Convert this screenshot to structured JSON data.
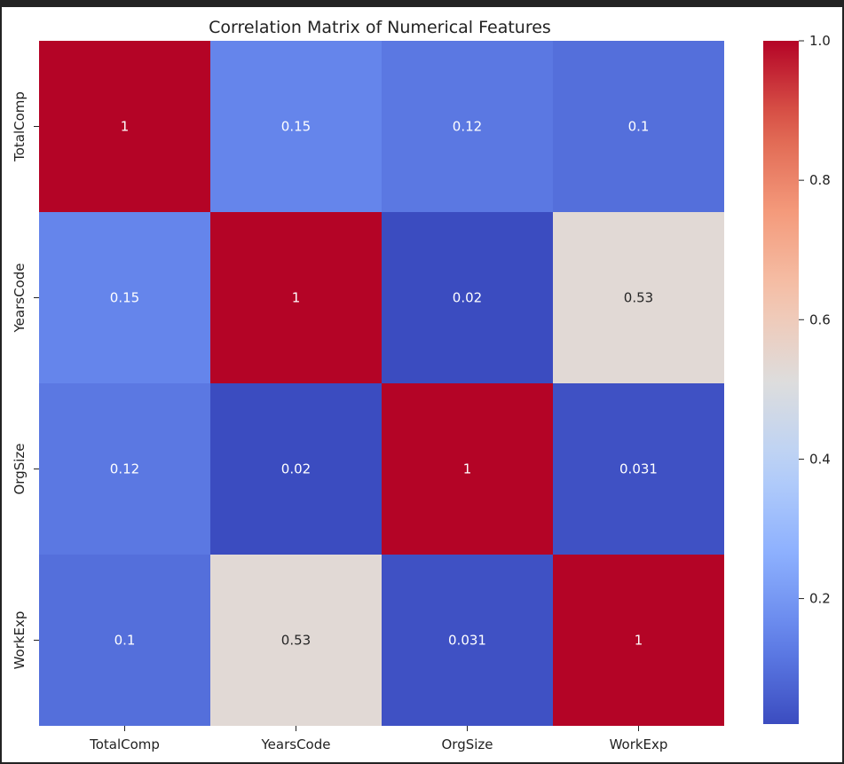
{
  "chart_data": {
    "type": "heatmap",
    "title": "Correlation Matrix of Numerical Features",
    "xlabel": "",
    "ylabel": "",
    "x_categories": [
      "TotalComp",
      "YearsCode",
      "OrgSize",
      "WorkExp"
    ],
    "y_categories": [
      "TotalComp",
      "YearsCode",
      "OrgSize",
      "WorkExp"
    ],
    "values": [
      [
        1,
        0.15,
        0.12,
        0.1
      ],
      [
        0.15,
        1,
        0.02,
        0.53
      ],
      [
        0.12,
        0.02,
        1,
        0.031
      ],
      [
        0.1,
        0.53,
        0.031,
        1
      ]
    ],
    "annotations": [
      [
        "1",
        "0.15",
        "0.12",
        "0.1"
      ],
      [
        "0.15",
        "1",
        "0.02",
        "0.53"
      ],
      [
        "0.12",
        "0.02",
        "1",
        "0.031"
      ],
      [
        "0.1",
        "0.53",
        "0.031",
        "1"
      ]
    ],
    "colormap": "coolwarm",
    "colorbar": {
      "range": [
        0.02,
        1.0
      ],
      "ticks": [
        0.2,
        0.4,
        0.6,
        0.8,
        1.0
      ],
      "tick_labels": [
        "0.2",
        "0.4",
        "0.6",
        "0.8",
        "1.0"
      ]
    },
    "grid": false
  }
}
